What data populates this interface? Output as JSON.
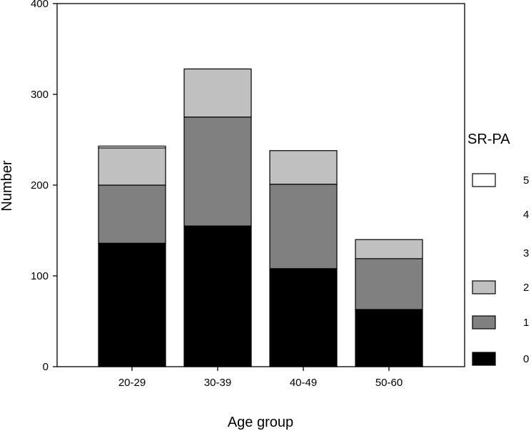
{
  "chart_data": {
    "type": "bar",
    "stacked": true,
    "xlabel": "Age group",
    "ylabel": "Number",
    "ylim": [
      0,
      400
    ],
    "yticks": [
      0,
      100,
      200,
      300,
      400
    ],
    "categories": [
      "20-29",
      "30-39",
      "40-49",
      "50-60"
    ],
    "legend_title": "SR-PA",
    "legend_placement": "right",
    "grid": false,
    "series": [
      {
        "name": "0",
        "color": "#000000",
        "values": [
          136,
          155,
          108,
          63
        ]
      },
      {
        "name": "1",
        "color": "#808080",
        "values": [
          64,
          120,
          93,
          56
        ]
      },
      {
        "name": "2",
        "color": "#c0c0c0",
        "values": [
          41,
          53,
          37,
          21
        ]
      },
      {
        "name": "3",
        "color": "#ffffff",
        "values": [
          0,
          0,
          0,
          0
        ]
      },
      {
        "name": "4",
        "color": "#ffffff",
        "values": [
          0,
          0,
          0,
          0
        ]
      },
      {
        "name": "5",
        "color": "#ffffff",
        "values": [
          2,
          0,
          0,
          0
        ]
      }
    ],
    "legend_swatches": [
      "5",
      "2",
      "1",
      "0"
    ],
    "legend_order": [
      "5",
      "4",
      "3",
      "2",
      "1",
      "0"
    ]
  }
}
